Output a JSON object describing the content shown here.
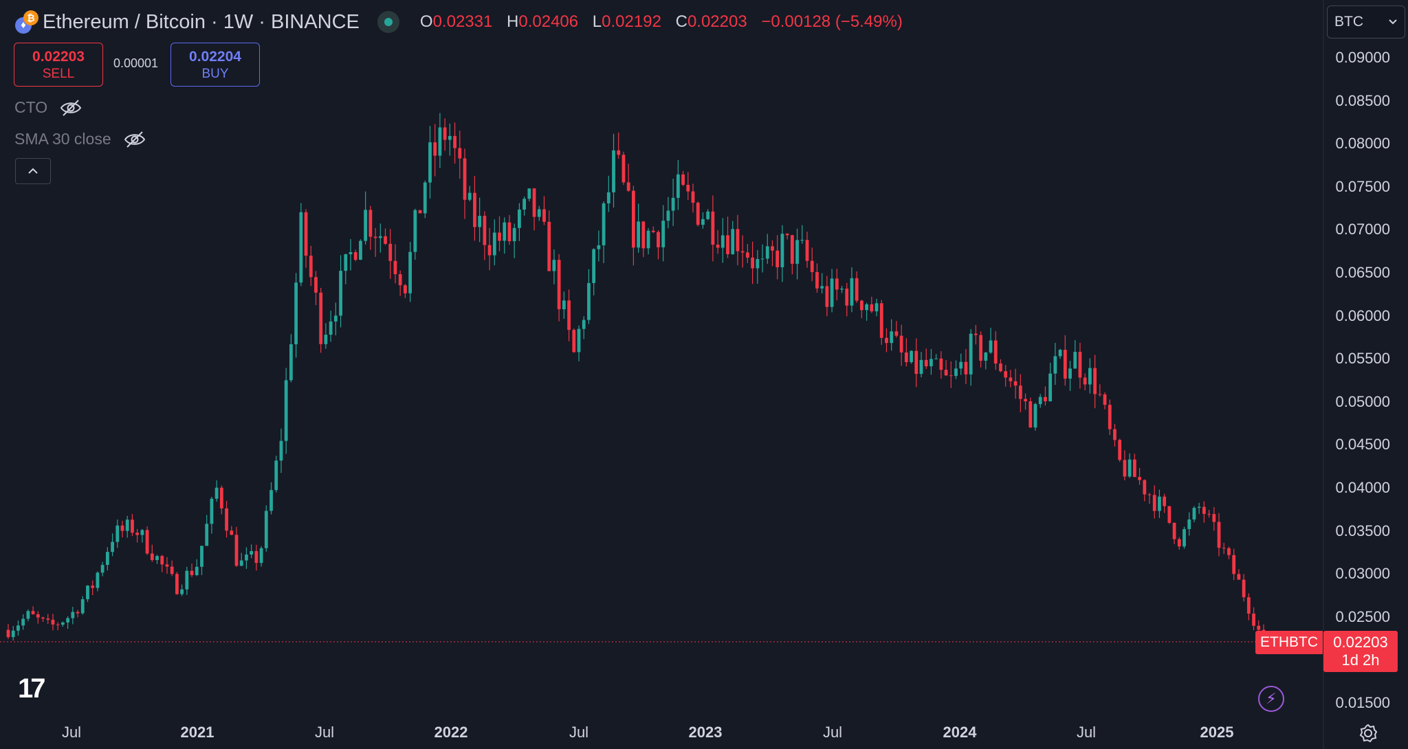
{
  "header": {
    "symbol_title": "Ethereum / Bitcoin · 1W · BINANCE",
    "ohlc": {
      "o_label": "O",
      "o_value": "0.02331",
      "h_label": "H",
      "h_value": "0.02406",
      "l_label": "L",
      "l_value": "0.02192",
      "c_label": "C",
      "c_value": "0.02203",
      "change": "−0.00128 (−5.49%)"
    },
    "currency_button": "BTC"
  },
  "trade": {
    "sell_price": "0.02203",
    "sell_label": "SELL",
    "spread": "0.00001",
    "buy_price": "0.02204",
    "buy_label": "BUY"
  },
  "indicators": [
    {
      "label": "CTO"
    },
    {
      "label": "SMA 30 close"
    }
  ],
  "price_tag": {
    "symbol": "ETHBTC",
    "price": "0.02203",
    "countdown": "1d 2h"
  },
  "colors": {
    "up": "#26a69a",
    "down": "#f23645",
    "background": "#161a25"
  },
  "icons": [
    "eye-off-icon",
    "chevron-up-icon",
    "chevron-down-icon",
    "lightning-icon",
    "gear-icon",
    "tradingview-logo"
  ],
  "chart_data": {
    "type": "candlestick",
    "title": "Ethereum / Bitcoin · 1W · BINANCE",
    "y_axis_labels": [
      "0.09000",
      "0.08500",
      "0.08000",
      "0.07500",
      "0.07000",
      "0.06500",
      "0.06000",
      "0.05500",
      "0.05000",
      "0.04500",
      "0.04000",
      "0.03500",
      "0.03000",
      "0.02500",
      "0.01500"
    ],
    "x_axis_labels": [
      "Jul",
      "2021",
      "Jul",
      "2022",
      "Jul",
      "2023",
      "Jul",
      "2024",
      "Jul",
      "2025"
    ],
    "ylim": [
      0.0115,
      0.0935
    ],
    "last_price": 0.02203,
    "close_series": [
      {
        "date": "2020-03",
        "close": 0.0235
      },
      {
        "date": "2020-04",
        "close": 0.0252
      },
      {
        "date": "2020-05",
        "close": 0.0238
      },
      {
        "date": "2020-06",
        "close": 0.0252
      },
      {
        "date": "2020-07",
        "close": 0.0285
      },
      {
        "date": "2020-08",
        "close": 0.0345
      },
      {
        "date": "2020-09",
        "close": 0.0355
      },
      {
        "date": "2020-10",
        "close": 0.0322
      },
      {
        "date": "2020-11",
        "close": 0.0285
      },
      {
        "date": "2020-12",
        "close": 0.031
      },
      {
        "date": "2021-01",
        "close": 0.0402
      },
      {
        "date": "2021-02",
        "close": 0.031
      },
      {
        "date": "2021-03",
        "close": 0.032
      },
      {
        "date": "2021-04",
        "close": 0.045
      },
      {
        "date": "2021-05",
        "close": 0.07
      },
      {
        "date": "2021-06",
        "close": 0.058
      },
      {
        "date": "2021-07",
        "close": 0.064
      },
      {
        "date": "2021-08",
        "close": 0.072
      },
      {
        "date": "2021-09",
        "close": 0.069
      },
      {
        "date": "2021-10",
        "close": 0.064
      },
      {
        "date": "2021-11",
        "close": 0.077
      },
      {
        "date": "2021-12",
        "close": 0.082
      },
      {
        "date": "2022-01",
        "close": 0.072
      },
      {
        "date": "2022-02",
        "close": 0.069
      },
      {
        "date": "2022-03",
        "close": 0.069
      },
      {
        "date": "2022-04",
        "close": 0.073
      },
      {
        "date": "2022-05",
        "close": 0.066
      },
      {
        "date": "2022-06",
        "close": 0.055
      },
      {
        "date": "2022-07",
        "close": 0.066
      },
      {
        "date": "2022-08",
        "close": 0.078
      },
      {
        "date": "2022-09",
        "close": 0.069
      },
      {
        "date": "2022-10",
        "close": 0.07
      },
      {
        "date": "2022-11",
        "close": 0.074
      },
      {
        "date": "2022-12",
        "close": 0.0725
      },
      {
        "date": "2023-01",
        "close": 0.07
      },
      {
        "date": "2023-02",
        "close": 0.069
      },
      {
        "date": "2023-03",
        "close": 0.065
      },
      {
        "date": "2023-04",
        "close": 0.068
      },
      {
        "date": "2023-05",
        "close": 0.067
      },
      {
        "date": "2023-06",
        "close": 0.062
      },
      {
        "date": "2023-07",
        "close": 0.063
      },
      {
        "date": "2023-08",
        "close": 0.062
      },
      {
        "date": "2023-09",
        "close": 0.058
      },
      {
        "date": "2023-10",
        "close": 0.054
      },
      {
        "date": "2023-11",
        "close": 0.054
      },
      {
        "date": "2023-12",
        "close": 0.052
      },
      {
        "date": "2024-01",
        "close": 0.056
      },
      {
        "date": "2024-02",
        "close": 0.056
      },
      {
        "date": "2024-03",
        "close": 0.052
      },
      {
        "date": "2024-04",
        "close": 0.048
      },
      {
        "date": "2024-05",
        "close": 0.054
      },
      {
        "date": "2024-06",
        "close": 0.055
      },
      {
        "date": "2024-07",
        "close": 0.052
      },
      {
        "date": "2024-08",
        "close": 0.043
      },
      {
        "date": "2024-09",
        "close": 0.041
      },
      {
        "date": "2024-10",
        "close": 0.038
      },
      {
        "date": "2024-11",
        "close": 0.034
      },
      {
        "date": "2024-12",
        "close": 0.038
      },
      {
        "date": "2025-01",
        "close": 0.033
      },
      {
        "date": "2025-02",
        "close": 0.028
      },
      {
        "date": "2025-03",
        "close": 0.022
      }
    ]
  }
}
